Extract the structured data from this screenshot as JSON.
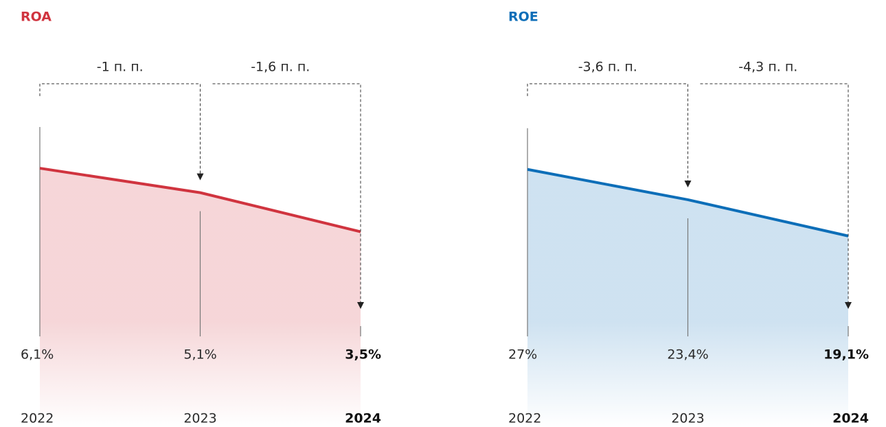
{
  "chart_data": [
    {
      "type": "area",
      "title": "ROA",
      "color": "#d0343f",
      "categories": [
        "2022",
        "2023",
        "2024"
      ],
      "values": [
        6.1,
        5.1,
        3.5
      ],
      "value_labels": [
        "6,1%",
        "5,1%",
        "3,5%"
      ],
      "annotations": [
        "-1 п. п.",
        "-1,6 п. п."
      ],
      "ylim": [
        -0.5,
        9.5
      ]
    },
    {
      "type": "area",
      "title": "ROE",
      "color": "#0d6eb8",
      "categories": [
        "2022",
        "2023",
        "2024"
      ],
      "values": [
        27,
        23.4,
        19.1
      ],
      "value_labels": [
        "27%",
        "23,4%",
        "19,1%"
      ],
      "annotations": [
        "-3,6 п. п.",
        "-4,3 п. п."
      ],
      "ylim": [
        8,
        37
      ]
    }
  ]
}
